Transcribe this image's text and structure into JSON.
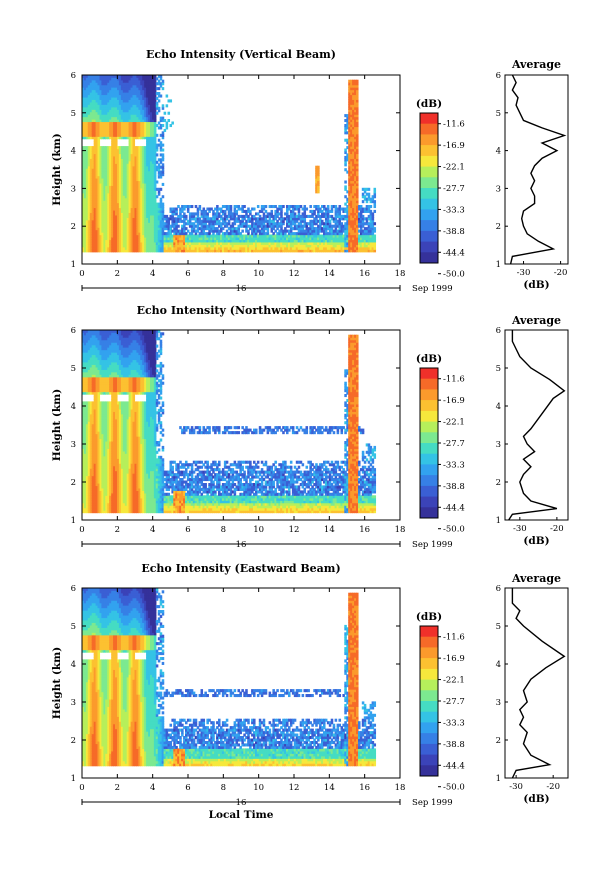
{
  "chart_data": [
    {
      "type": "heatmap",
      "title": "Echo Intensity (Vertical Beam)",
      "ylabel": "Height (km)",
      "xlim": [
        0,
        18
      ],
      "ylim": [
        1,
        6
      ],
      "xticks": [
        "0",
        "2",
        "4",
        "6",
        "8",
        "10",
        "12",
        "14",
        "16",
        "18"
      ],
      "yticks": [
        "1",
        "2",
        "3",
        "4",
        "5",
        "6"
      ],
      "date_label": "16",
      "month_label": "Sep 1999",
      "data_extent_hours": [
        0,
        16.6
      ],
      "bottom_height_km": 1.35,
      "spike_times_h": [
        5.5,
        13.3,
        15.3
      ],
      "average_profile": {
        "title": "Average",
        "xlabel": "(dB)",
        "xticks": [
          "-30",
          "-20"
        ],
        "xlim": [
          -35,
          -18
        ],
        "profile": [
          [
            -33.5,
            1.0
          ],
          [
            -33,
            1.2
          ],
          [
            -22,
            1.4
          ],
          [
            -26,
            1.6
          ],
          [
            -29,
            1.8
          ],
          [
            -30,
            2.0
          ],
          [
            -30.5,
            2.2
          ],
          [
            -30,
            2.4
          ],
          [
            -27,
            2.6
          ],
          [
            -27,
            2.8
          ],
          [
            -28,
            3.0
          ],
          [
            -27,
            3.2
          ],
          [
            -28,
            3.4
          ],
          [
            -27,
            3.6
          ],
          [
            -25,
            3.8
          ],
          [
            -21,
            4.0
          ],
          [
            -25,
            4.2
          ],
          [
            -19,
            4.4
          ],
          [
            -25,
            4.6
          ],
          [
            -30,
            4.8
          ],
          [
            -31,
            5.0
          ],
          [
            -32,
            5.2
          ],
          [
            -31.5,
            5.4
          ],
          [
            -33,
            5.6
          ],
          [
            -32,
            5.8
          ],
          [
            -33,
            6.0
          ]
        ]
      }
    },
    {
      "type": "heatmap",
      "title": "Echo Intensity (Northward Beam)",
      "ylabel": "Height (km)",
      "xlim": [
        0,
        18
      ],
      "ylim": [
        1,
        6
      ],
      "xticks": [
        "0",
        "2",
        "4",
        "6",
        "8",
        "10",
        "12",
        "14",
        "16",
        "18"
      ],
      "yticks": [
        "1",
        "2",
        "3",
        "4",
        "5",
        "6"
      ],
      "date_label": "16",
      "month_label": "Sep 1999",
      "data_extent_hours": [
        0,
        16.6
      ],
      "bottom_height_km": 1.2,
      "spike_times_h": [
        5.5,
        15.3
      ],
      "average_profile": {
        "title": "Average",
        "xlabel": "(dB)",
        "xticks": [
          "-30",
          "-20"
        ],
        "xlim": [
          -34,
          -17
        ],
        "profile": [
          [
            -33,
            1.0
          ],
          [
            -32,
            1.15
          ],
          [
            -20,
            1.3
          ],
          [
            -27,
            1.5
          ],
          [
            -29,
            1.7
          ],
          [
            -30,
            2.0
          ],
          [
            -29,
            2.2
          ],
          [
            -27,
            2.4
          ],
          [
            -29,
            2.6
          ],
          [
            -26,
            2.8
          ],
          [
            -28,
            3.0
          ],
          [
            -29,
            3.2
          ],
          [
            -27,
            3.4
          ],
          [
            -24,
            3.8
          ],
          [
            -21,
            4.2
          ],
          [
            -18,
            4.4
          ],
          [
            -22,
            4.7
          ],
          [
            -27,
            5.0
          ],
          [
            -30,
            5.3
          ],
          [
            -31,
            5.5
          ],
          [
            -32,
            5.7
          ],
          [
            -32,
            6.0
          ]
        ]
      }
    },
    {
      "type": "heatmap",
      "title": "Echo Intensity (Eastward Beam)",
      "ylabel": "Height (km)",
      "xlim": [
        0,
        18
      ],
      "ylim": [
        1,
        6
      ],
      "xticks": [
        "0",
        "2",
        "4",
        "6",
        "8",
        "10",
        "12",
        "14",
        "16",
        "18"
      ],
      "yticks": [
        "1",
        "2",
        "3",
        "4",
        "5",
        "6"
      ],
      "date_label": "16",
      "month_label": "Sep 1999",
      "xlabel": "Local Time",
      "data_extent_hours": [
        0,
        16.6
      ],
      "bottom_height_km": 1.3,
      "spike_times_h": [
        5.5,
        15.3
      ],
      "average_profile": {
        "title": "Average",
        "xlabel": "(dB)",
        "xticks": [
          "-30",
          "-20"
        ],
        "xlim": [
          -33,
          -16
        ],
        "profile": [
          [
            -31,
            1.0
          ],
          [
            -30,
            1.2
          ],
          [
            -21,
            1.35
          ],
          [
            -26,
            1.6
          ],
          [
            -28,
            1.9
          ],
          [
            -27,
            2.2
          ],
          [
            -29,
            2.4
          ],
          [
            -28,
            2.6
          ],
          [
            -29,
            2.8
          ],
          [
            -27,
            3.0
          ],
          [
            -28,
            3.3
          ],
          [
            -26,
            3.6
          ],
          [
            -22,
            3.9
          ],
          [
            -17,
            4.2
          ],
          [
            -23,
            4.6
          ],
          [
            -28,
            5.0
          ],
          [
            -30,
            5.2
          ],
          [
            -29,
            5.4
          ],
          [
            -31,
            5.6
          ],
          [
            -31,
            6.0
          ]
        ]
      }
    }
  ],
  "colorbar": {
    "unit": "(dB)",
    "labels": [
      "-11.6",
      "-16.9",
      "-22.1",
      "-27.7",
      "-33.3",
      "-38.8",
      "-44.4",
      "-50.0"
    ],
    "colors": [
      "#f0302a",
      "#f66a28",
      "#fb9a2c",
      "#fcc131",
      "#f6e83c",
      "#b6ef5b",
      "#7ce990",
      "#45dcc3",
      "#34c3e5",
      "#32a2ef",
      "#3680e6",
      "#3a5fd4",
      "#3b43b8",
      "#35319a"
    ]
  }
}
